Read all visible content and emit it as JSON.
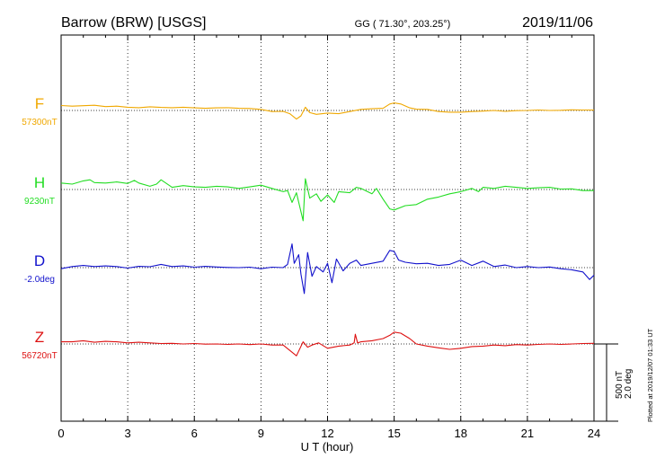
{
  "header": {
    "station": "Barrow (BRW)  [USGS]",
    "coords": "GG ( 71.30°, 203.25°)",
    "date": "2019/11/06"
  },
  "side_note": "Plotted at 2019/12/07 01:33 UT",
  "scale_bar": {
    "line1": "500 nT",
    "line2": "2.0 deg"
  },
  "chart_data": {
    "type": "line",
    "xlabel": "U T (hour)",
    "xlim": [
      0,
      24
    ],
    "xticks": [
      0,
      3,
      6,
      9,
      12,
      15,
      18,
      21,
      24
    ],
    "grid": true,
    "colors": {
      "F": "#f0a800",
      "H": "#22dd22",
      "D": "#1111cc",
      "Z": "#dd1111"
    },
    "panels": [
      {
        "name": "F",
        "baseline_label": "57300nT",
        "x": [
          0,
          0.5,
          1,
          1.5,
          2,
          2.5,
          3,
          3.5,
          4,
          4.5,
          5,
          5.5,
          6,
          6.5,
          7,
          7.5,
          8,
          8.5,
          9,
          9.5,
          10,
          10.3,
          10.6,
          10.8,
          11,
          11.2,
          11.5,
          12,
          12.5,
          13,
          13.5,
          14,
          14.5,
          14.8,
          15,
          15.3,
          15.7,
          16,
          16.5,
          17,
          17.5,
          18,
          18.5,
          19,
          19.5,
          20,
          20.5,
          21,
          21.5,
          22,
          22.5,
          23,
          23.5,
          24
        ],
        "y": [
          0.23,
          0.2,
          0.22,
          0.24,
          0.18,
          0.2,
          0.15,
          0.13,
          0.17,
          0.14,
          0.13,
          0.15,
          0.12,
          0.1,
          0.12,
          0.13,
          0.1,
          0.09,
          0.05,
          -0.05,
          -0.04,
          -0.15,
          -0.4,
          -0.25,
          0.15,
          -0.1,
          -0.18,
          -0.12,
          -0.15,
          -0.05,
          0.05,
          0.08,
          0.1,
          0.3,
          0.35,
          0.3,
          0.12,
          0.06,
          0.05,
          -0.05,
          -0.08,
          -0.08,
          -0.05,
          -0.03,
          0.0,
          -0.04,
          -0.01,
          0.0,
          0.02,
          0.0,
          0.01,
          0.03,
          0.02,
          0.02
        ]
      },
      {
        "name": "H",
        "baseline_label": "9230nT",
        "x": [
          0,
          0.5,
          1,
          1.3,
          1.5,
          2,
          2.5,
          3,
          3.3,
          3.5,
          4,
          4.3,
          4.5,
          5,
          5.5,
          6,
          6.5,
          7,
          7.5,
          8,
          8.5,
          9,
          9.5,
          10,
          10.2,
          10.4,
          10.6,
          10.75,
          10.9,
          11,
          11.2,
          11.5,
          11.7,
          12,
          12.3,
          12.5,
          13,
          13.3,
          13.5,
          14,
          14.2,
          14.5,
          14.8,
          15,
          15.5,
          16,
          16.5,
          17,
          17.5,
          18,
          18.5,
          18.8,
          19,
          19.5,
          20,
          20.5,
          21,
          21.5,
          22,
          22.5,
          23,
          23.5,
          24
        ],
        "y": [
          0.3,
          0.25,
          0.4,
          0.45,
          0.32,
          0.3,
          0.35,
          0.28,
          0.42,
          0.3,
          0.15,
          0.25,
          0.45,
          0.1,
          0.18,
          0.12,
          0.1,
          0.15,
          0.12,
          0.05,
          0.12,
          0.2,
          0.05,
          -0.1,
          -0.05,
          -0.6,
          -0.15,
          -0.8,
          -1.45,
          0.5,
          -0.4,
          -0.2,
          -0.55,
          -0.25,
          -0.6,
          -0.1,
          -0.15,
          0.1,
          0.05,
          -0.2,
          0.05,
          -0.45,
          -0.9,
          -0.95,
          -0.75,
          -0.7,
          -0.45,
          -0.35,
          -0.2,
          -0.1,
          0.05,
          -0.1,
          0.1,
          0.05,
          0.15,
          0.1,
          0.05,
          0.08,
          0.1,
          0.02,
          0.03,
          -0.05,
          -0.05
        ]
      },
      {
        "name": "D",
        "baseline_label": "-2.0deg",
        "x": [
          0,
          0.5,
          1,
          1.5,
          2,
          2.5,
          3,
          3.5,
          4,
          4.5,
          5,
          5.5,
          6,
          6.5,
          7,
          7.5,
          8,
          8.5,
          9,
          9.5,
          10,
          10.2,
          10.4,
          10.5,
          10.7,
          10.8,
          10.95,
          11.1,
          11.3,
          11.5,
          11.8,
          12,
          12.2,
          12.4,
          12.7,
          13,
          13.3,
          13.5,
          14,
          14.5,
          14.8,
          15,
          15.2,
          15.5,
          16,
          16.5,
          17,
          17.5,
          18,
          18.5,
          19,
          19.5,
          20,
          20.5,
          21,
          21.5,
          22,
          22.5,
          23,
          23.5,
          23.8,
          24
        ],
        "y": [
          -0.05,
          0.05,
          0.1,
          0.05,
          0.08,
          0.05,
          -0.02,
          0.06,
          0.04,
          0.15,
          0.05,
          0.08,
          0.02,
          0.06,
          0.03,
          0.01,
          0.0,
          0.02,
          -0.05,
          0.02,
          0.0,
          0.15,
          1.1,
          0.2,
          0.6,
          -0.3,
          -1.2,
          0.7,
          -0.4,
          0.05,
          -0.2,
          0.2,
          -0.7,
          0.4,
          -0.15,
          0.2,
          0.35,
          0.1,
          0.2,
          0.3,
          0.8,
          0.75,
          0.35,
          0.25,
          0.18,
          0.2,
          0.1,
          0.15,
          0.35,
          0.1,
          0.3,
          0.05,
          0.12,
          0.0,
          0.05,
          0.0,
          0.03,
          -0.05,
          -0.1,
          -0.2,
          -0.55,
          -0.35
        ]
      },
      {
        "name": "Z",
        "baseline_label": "56720nT",
        "x": [
          0,
          0.5,
          1,
          1.5,
          2,
          2.5,
          3,
          3.5,
          4,
          4.5,
          5,
          5.5,
          6,
          6.5,
          7,
          7.5,
          8,
          8.5,
          9,
          9.5,
          10,
          10.3,
          10.6,
          10.9,
          11.1,
          11.3,
          11.6,
          12,
          12.5,
          13,
          13.2,
          13.25,
          13.35,
          13.5,
          14,
          14.5,
          14.8,
          15,
          15.3,
          15.7,
          16,
          16.5,
          17,
          17.5,
          18,
          18.5,
          19,
          19.5,
          20,
          20.5,
          21,
          21.5,
          22,
          22.5,
          23,
          23.5,
          24
        ],
        "y": [
          0.1,
          0.1,
          0.15,
          0.08,
          0.12,
          0.1,
          0.05,
          0.08,
          0.05,
          0.02,
          0.03,
          0.0,
          0.02,
          -0.01,
          0.0,
          -0.02,
          0.0,
          -0.03,
          0.0,
          -0.05,
          -0.05,
          -0.3,
          -0.55,
          0.1,
          -0.15,
          -0.05,
          0.05,
          -0.2,
          -0.1,
          -0.05,
          0.05,
          0.45,
          0.05,
          0.1,
          0.15,
          0.25,
          0.4,
          0.55,
          0.5,
          0.25,
          0.0,
          -0.1,
          -0.18,
          -0.25,
          -0.2,
          -0.12,
          -0.1,
          -0.05,
          -0.08,
          -0.03,
          -0.05,
          -0.02,
          0.0,
          -0.02,
          0.0,
          0.02,
          0.03
        ]
      }
    ]
  }
}
